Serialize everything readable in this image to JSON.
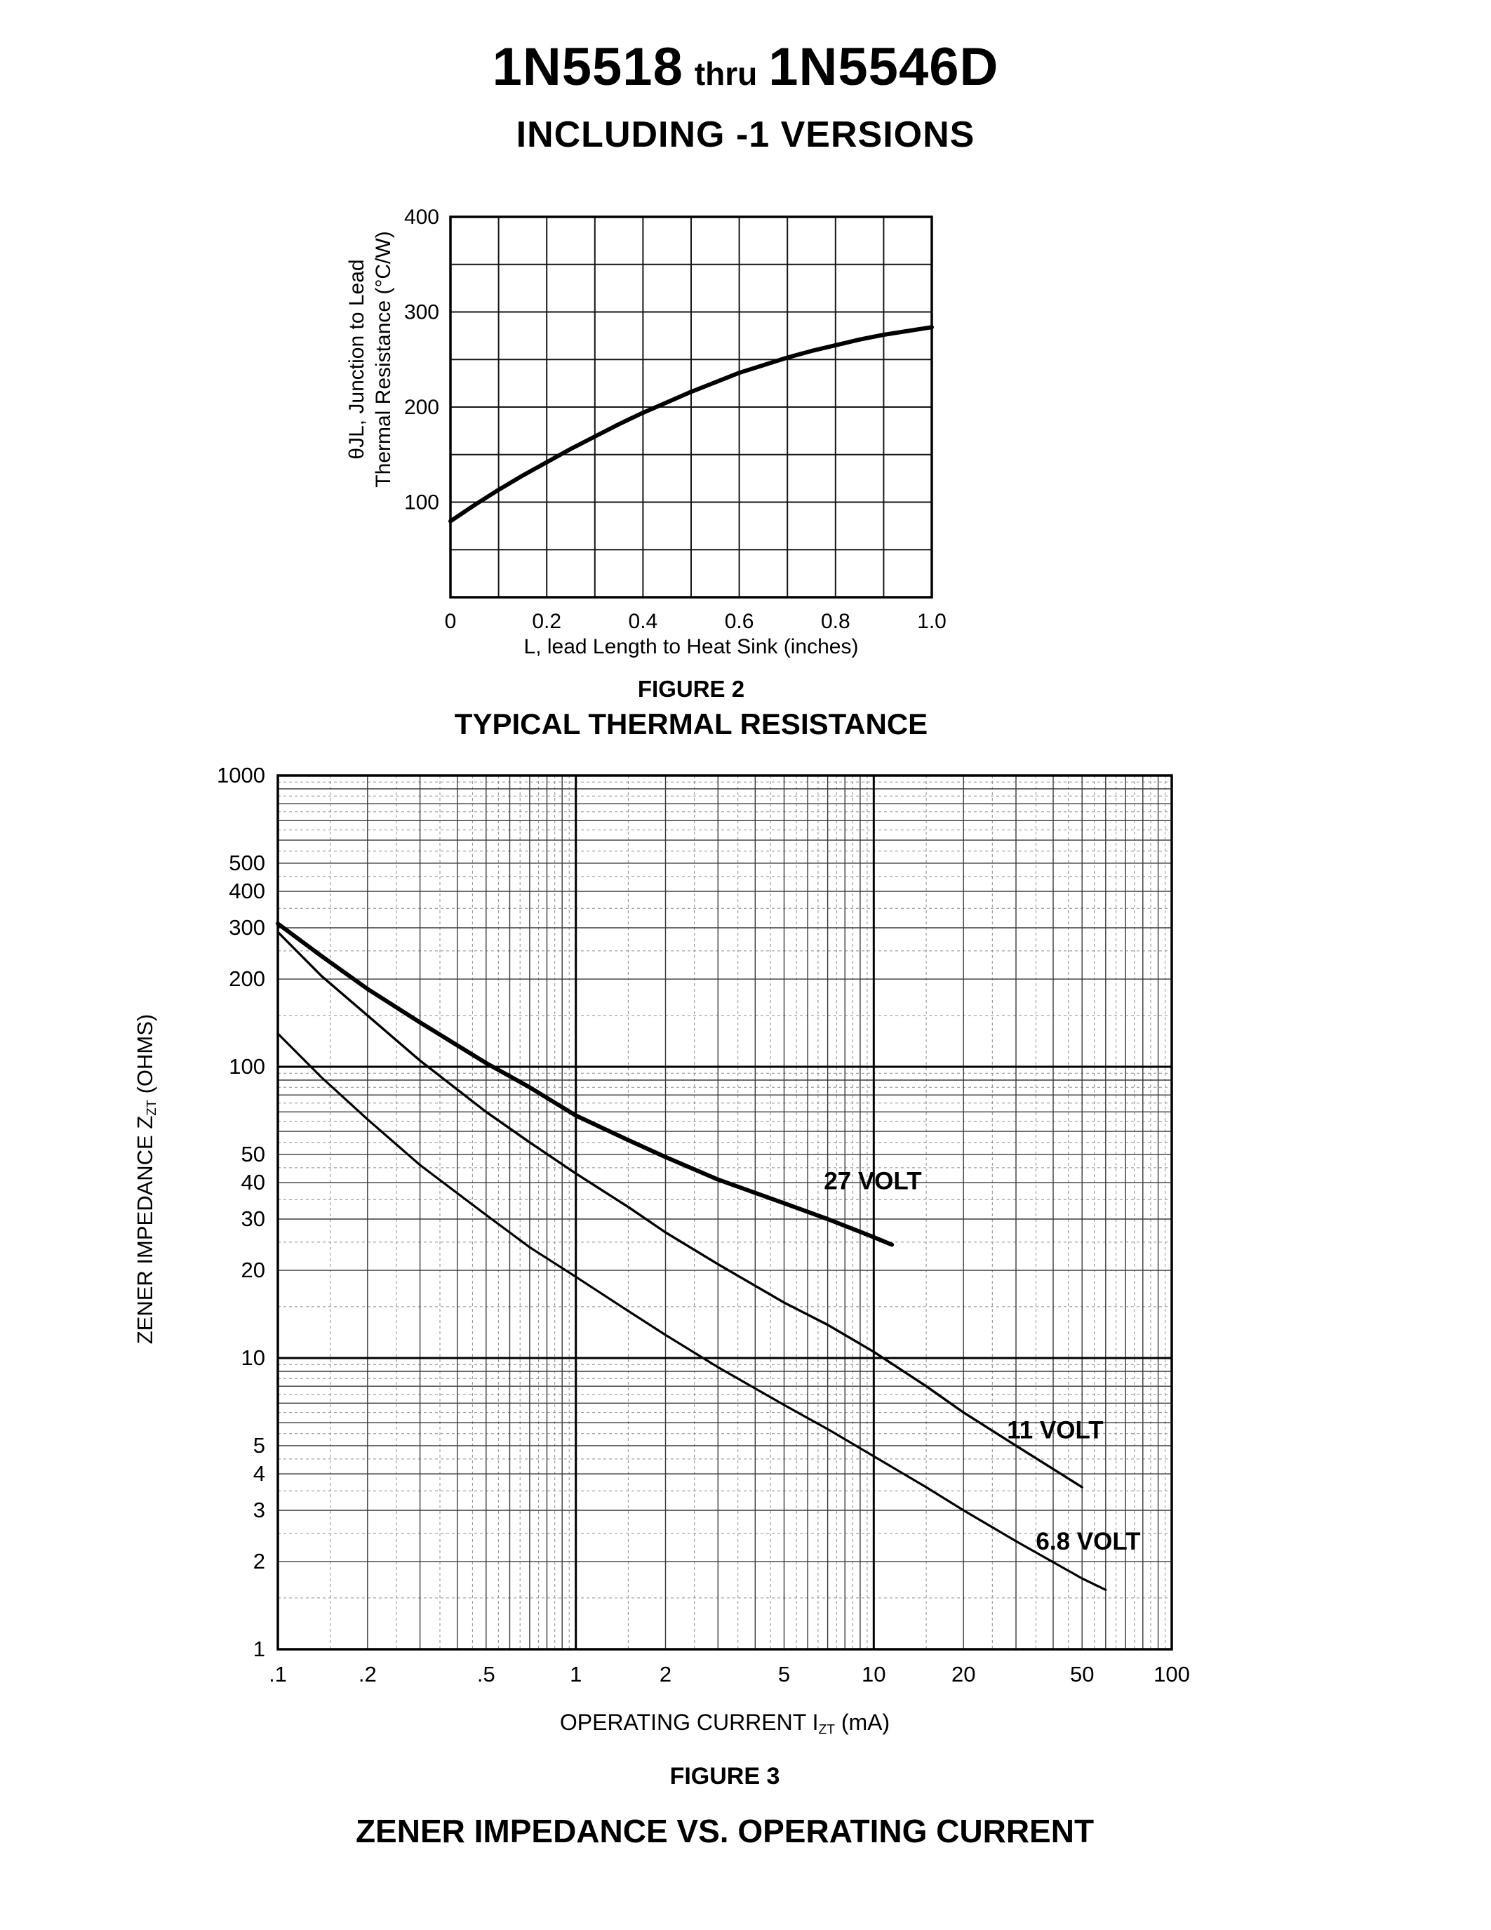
{
  "header": {
    "part_start": "1N5518",
    "thru": "thru",
    "part_end": "1N5546D",
    "subtitle": "INCLUDING -1 VERSIONS"
  },
  "figure2": {
    "caption": "FIGURE 2",
    "title": "TYPICAL THERMAL RESISTANCE",
    "xlabel": "L, lead Length to Heat Sink (inches)",
    "ylabel_line1": "θJL, Junction to Lead",
    "ylabel_line2": "Thermal Resistance (°C/W)"
  },
  "figure3": {
    "caption": "FIGURE 3",
    "title": "ZENER IMPEDANCE VS. OPERATING CURRENT",
    "xlabel_pre": "OPERATING CURRENT I",
    "xlabel_sub": "ZT",
    "xlabel_post": " (mA)",
    "ylabel_pre": "ZENER IMPEDANCE Z",
    "ylabel_sub": "ZT",
    "ylabel_post": " (OHMS)"
  },
  "chart_data": [
    {
      "id": "figure2",
      "type": "line",
      "title": "TYPICAL THERMAL RESISTANCE",
      "xlabel": "L, lead Length to Heat Sink (inches)",
      "ylabel": "θJL, Junction to Lead Thermal Resistance (°C/W)",
      "x_scale": "linear",
      "y_scale": "linear",
      "xlim": [
        0,
        1.0
      ],
      "ylim": [
        0,
        400
      ],
      "x_grid_step": 0.1,
      "y_grid_step": 50,
      "grid": true,
      "x_ticks": [
        0,
        0.2,
        0.4,
        0.6,
        0.8,
        1.0
      ],
      "x_tick_labels": [
        "0",
        "0.2",
        "0.4",
        "0.6",
        "0.8",
        "1.0"
      ],
      "y_ticks": [
        100,
        200,
        300,
        400
      ],
      "y_tick_labels": [
        "100",
        "200",
        "300",
        "400"
      ],
      "series": [
        {
          "name": "thermal-resistance",
          "x": [
            0,
            0.05,
            0.1,
            0.15,
            0.2,
            0.25,
            0.3,
            0.35,
            0.4,
            0.45,
            0.5,
            0.55,
            0.6,
            0.65,
            0.7,
            0.75,
            0.8,
            0.85,
            0.9,
            0.95,
            1.0
          ],
          "y": [
            80,
            97,
            113,
            128,
            142,
            156,
            169,
            182,
            194,
            205,
            216,
            226,
            236,
            244,
            252,
            259,
            265,
            271,
            276,
            280,
            284
          ]
        }
      ]
    },
    {
      "id": "figure3",
      "type": "line",
      "title": "ZENER IMPEDANCE VS. OPERATING CURRENT",
      "xlabel": "OPERATING CURRENT IZT (mA)",
      "ylabel": "ZENER IMPEDANCE ZZT (OHMS)",
      "x_scale": "log",
      "y_scale": "log",
      "xlim": [
        0.1,
        100
      ],
      "ylim": [
        1,
        1000
      ],
      "grid": true,
      "x_ticks": [
        0.1,
        0.2,
        0.5,
        1,
        2,
        5,
        10,
        20,
        50,
        100
      ],
      "x_tick_labels": [
        ".1",
        ".2",
        ".5",
        "1",
        "2",
        "5",
        "10",
        "20",
        "50",
        "100"
      ],
      "y_ticks": [
        1,
        2,
        3,
        4,
        5,
        10,
        20,
        30,
        40,
        50,
        100,
        200,
        300,
        400,
        500,
        1000
      ],
      "y_tick_labels": [
        "1",
        "2",
        "3",
        "4",
        "5",
        "10",
        "20",
        "30",
        "40",
        "50",
        "100",
        "200",
        "300",
        "400",
        "500",
        "1000"
      ],
      "series": [
        {
          "name": "27-volt",
          "label": "27 VOLT",
          "label_at": [
            6.8,
            38
          ],
          "x": [
            0.1,
            0.14,
            0.2,
            0.3,
            0.5,
            0.7,
            1,
            1.5,
            2,
            3,
            5,
            7,
            10,
            11.5
          ],
          "y": [
            310,
            240,
            185,
            142,
            103,
            85,
            68,
            56,
            49,
            41,
            34,
            30,
            26,
            24.5
          ]
        },
        {
          "name": "11-volt",
          "label": "11 VOLT",
          "label_at": [
            28,
            5.3
          ],
          "x": [
            0.1,
            0.14,
            0.2,
            0.3,
            0.5,
            0.7,
            1,
            1.5,
            2,
            3,
            5,
            7,
            10,
            15,
            20,
            30,
            50
          ],
          "y": [
            290,
            205,
            150,
            105,
            70,
            55,
            43,
            33,
            27,
            21,
            15.5,
            13,
            10.5,
            8,
            6.5,
            5,
            3.6
          ]
        },
        {
          "name": "6.8-volt",
          "label": "6.8 VOLT",
          "label_at": [
            35,
            2.2
          ],
          "x": [
            0.1,
            0.14,
            0.2,
            0.3,
            0.5,
            0.7,
            1,
            1.5,
            2,
            3,
            5,
            7,
            10,
            15,
            20,
            30,
            50,
            60
          ],
          "y": [
            130,
            92,
            66,
            46,
            31,
            24,
            19,
            14.5,
            12,
            9.3,
            6.9,
            5.7,
            4.6,
            3.6,
            3.0,
            2.35,
            1.75,
            1.6
          ]
        }
      ]
    }
  ]
}
